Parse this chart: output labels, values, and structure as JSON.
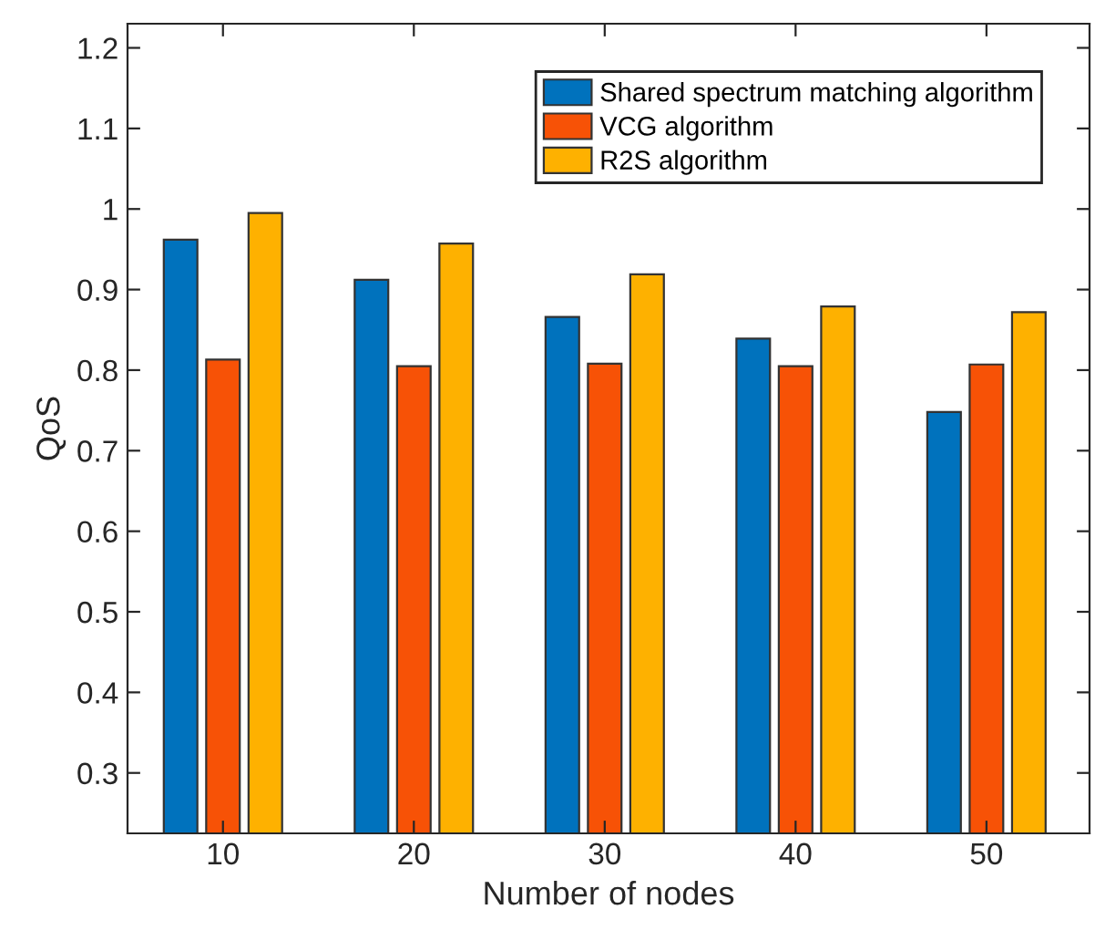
{
  "chart_data": {
    "type": "bar",
    "xlabel": "Number of nodes",
    "ylabel": "QoS",
    "categories": [
      "10",
      "20",
      "30",
      "40",
      "50"
    ],
    "series": [
      {
        "name": "Shared spectrum matching algorithm",
        "color": "#0072bd",
        "values": [
          0.962,
          0.912,
          0.866,
          0.839,
          0.748
        ]
      },
      {
        "name": "VCG algorithm",
        "color": "#f75206",
        "values": [
          0.813,
          0.805,
          0.808,
          0.805,
          0.807
        ]
      },
      {
        "name": "R2S algorithm",
        "color": "#feb100",
        "values": [
          0.995,
          0.957,
          0.919,
          0.879,
          0.872
        ]
      }
    ],
    "ylim": [
      0.225,
      1.23
    ],
    "yticks": [
      0.3,
      0.4,
      0.5,
      0.6,
      0.7,
      0.8,
      0.9,
      1,
      1.1,
      1.2
    ],
    "grid": false,
    "legend": "top right"
  }
}
